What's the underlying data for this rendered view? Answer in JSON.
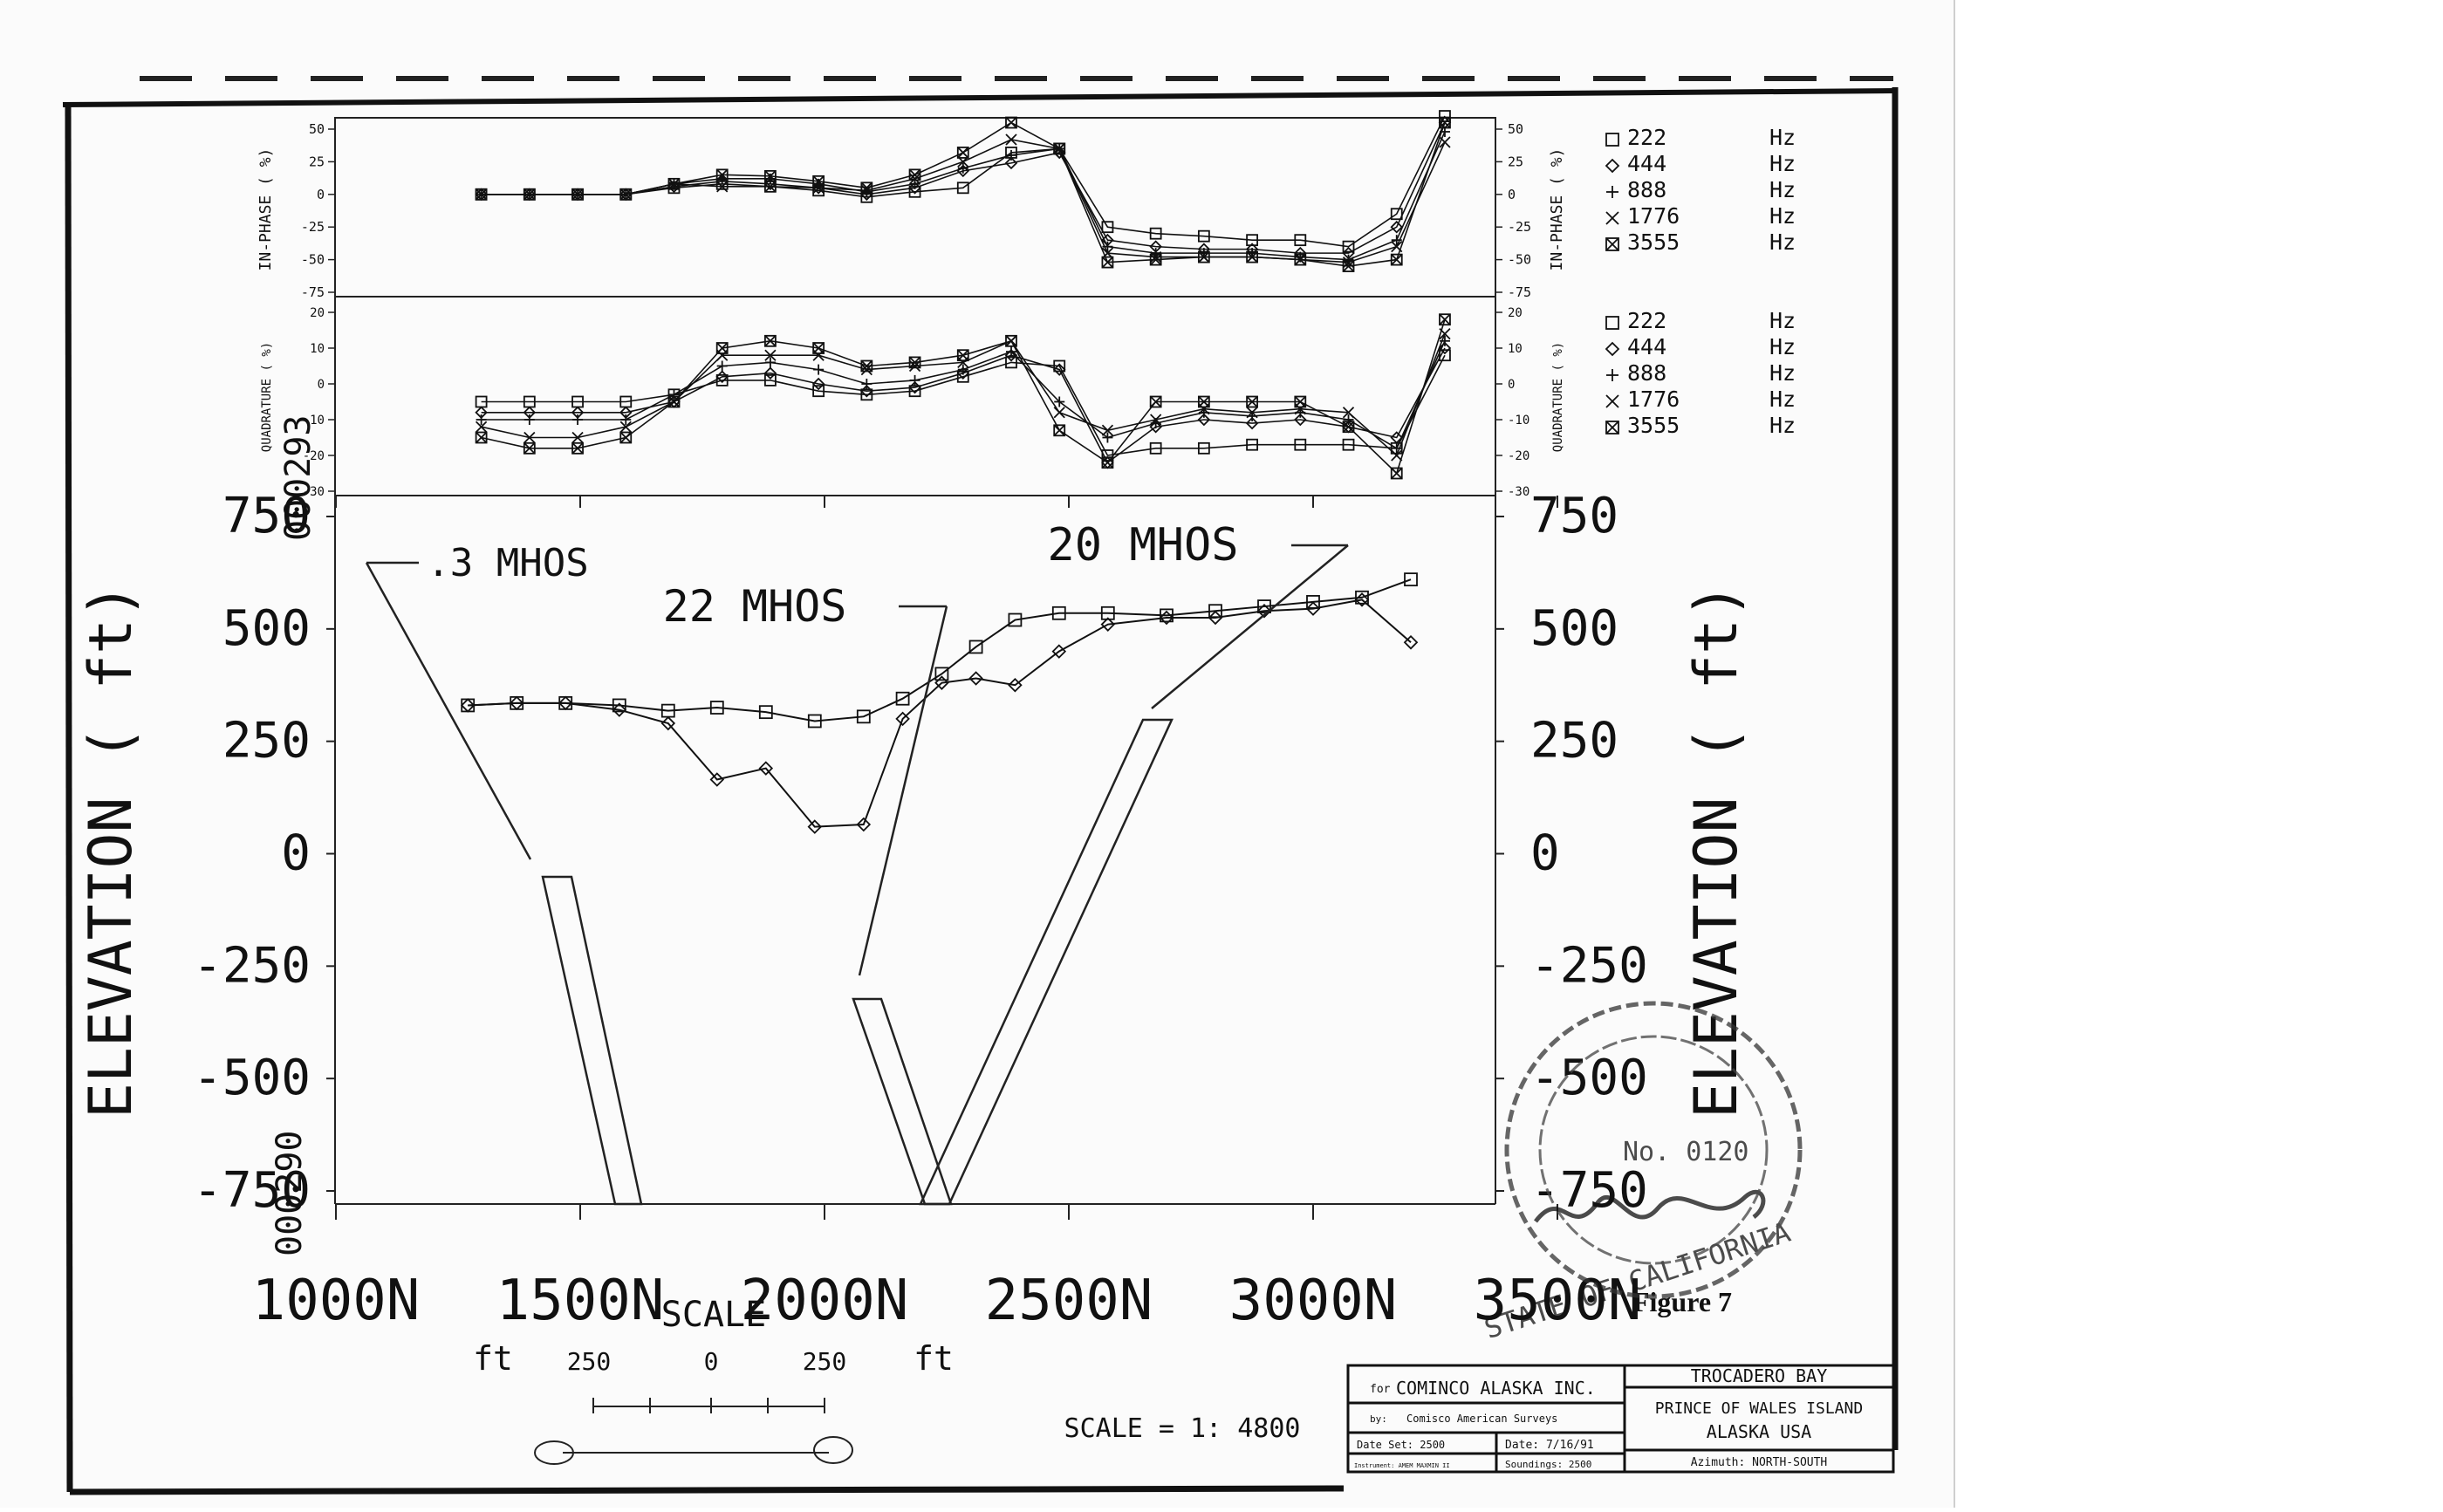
{
  "figure_label": "Figure 7",
  "chart_data": [
    {
      "type": "line",
      "panel": "in-phase",
      "ylabel_left": "IN-PHASE ( %)",
      "ylabel_right": "IN-PHASE ( %)",
      "ylim": [
        -75,
        50
      ],
      "yticks": [
        "50",
        "25",
        "0",
        "-25",
        "-50",
        "-75"
      ],
      "ytick_values": [
        50,
        25,
        0,
        -25,
        -50,
        -75
      ],
      "x": [
        1100,
        1300,
        1500,
        1700,
        1900,
        2100,
        2300,
        2500,
        2700,
        2900,
        3100,
        3300,
        3500,
        3700,
        3900,
        4100,
        4300,
        4500,
        4700,
        4900,
        5100
      ],
      "series": [
        {
          "name": "222",
          "unit": "Hz",
          "marker": "square",
          "values": [
            0,
            0,
            0,
            0,
            5,
            8,
            6,
            3,
            -2,
            2,
            5,
            32,
            35,
            -25,
            -30,
            -32,
            -35,
            -35,
            -40,
            -15,
            60
          ]
        },
        {
          "name": "444",
          "unit": "Hz",
          "marker": "diamond",
          "values": [
            0,
            0,
            0,
            0,
            6,
            10,
            8,
            5,
            0,
            5,
            18,
            24,
            32,
            -35,
            -40,
            -42,
            -42,
            -45,
            -45,
            -25,
            55
          ]
        },
        {
          "name": "888",
          "unit": "Hz",
          "marker": "plus",
          "values": [
            0,
            0,
            0,
            0,
            8,
            12,
            12,
            8,
            2,
            8,
            20,
            30,
            35,
            -40,
            -45,
            -45,
            -45,
            -48,
            -50,
            -35,
            48
          ]
        },
        {
          "name": "1776",
          "unit": "Hz",
          "marker": "cross",
          "values": [
            0,
            0,
            0,
            0,
            8,
            6,
            6,
            5,
            3,
            12,
            25,
            42,
            35,
            -45,
            -48,
            -48,
            -48,
            -50,
            -52,
            -40,
            40
          ]
        },
        {
          "name": "3555",
          "unit": "Hz",
          "marker": "boxx",
          "values": [
            0,
            0,
            0,
            0,
            8,
            15,
            14,
            10,
            5,
            15,
            32,
            55,
            35,
            -52,
            -50,
            -48,
            -48,
            -50,
            -55,
            -50,
            55
          ]
        }
      ],
      "legend": "right"
    },
    {
      "type": "line",
      "panel": "quadrature",
      "ylabel_left": "QUADRATURE ( %)",
      "ylabel_right": "QUADRATURE ( %)",
      "ylim": [
        -30,
        20
      ],
      "yticks": [
        "20",
        "10",
        "0",
        "-10",
        "-20",
        "-30"
      ],
      "ytick_values": [
        20,
        10,
        0,
        -10,
        -20,
        -30
      ],
      "x": [
        1100,
        1300,
        1500,
        1700,
        1900,
        2100,
        2300,
        2500,
        2700,
        2900,
        3100,
        3300,
        3500,
        3700,
        3900,
        4100,
        4300,
        4500,
        4700,
        4900,
        5100
      ],
      "series": [
        {
          "name": "222",
          "unit": "Hz",
          "marker": "square",
          "values": [
            -5,
            -5,
            -5,
            -5,
            -3,
            1,
            1,
            -2,
            -3,
            -2,
            2,
            6,
            5,
            -20,
            -18,
            -18,
            -17,
            -17,
            -17,
            -18,
            8
          ]
        },
        {
          "name": "444",
          "unit": "Hz",
          "marker": "diamond",
          "values": [
            -8,
            -8,
            -8,
            -8,
            -5,
            2,
            3,
            0,
            -2,
            -1,
            3,
            8,
            4,
            -22,
            -12,
            -10,
            -11,
            -10,
            -12,
            -15,
            10
          ]
        },
        {
          "name": "888",
          "unit": "Hz",
          "marker": "plus",
          "values": [
            -10,
            -10,
            -10,
            -10,
            -3,
            5,
            6,
            4,
            0,
            1,
            4,
            9,
            -5,
            -15,
            -11,
            -8,
            -9,
            -8,
            -10,
            -18,
            12
          ]
        },
        {
          "name": "1776",
          "unit": "Hz",
          "marker": "cross",
          "values": [
            -12,
            -15,
            -15,
            -12,
            -5,
            8,
            8,
            8,
            4,
            5,
            6,
            12,
            -8,
            -13,
            -10,
            -7,
            -8,
            -7,
            -8,
            -20,
            14
          ]
        },
        {
          "name": "3555",
          "unit": "Hz",
          "marker": "boxx",
          "values": [
            -15,
            -18,
            -18,
            -15,
            -5,
            10,
            12,
            10,
            5,
            6,
            8,
            12,
            -13,
            -22,
            -5,
            -5,
            -5,
            -5,
            -12,
            -25,
            18
          ]
        }
      ],
      "legend": "right"
    },
    {
      "type": "line",
      "panel": "elevation",
      "ylabel_left": "ELEVATION ( ft)",
      "ylabel_right": "ELEVATION ( ft)",
      "ylim": [
        -750,
        750
      ],
      "yticks": [
        "750",
        "500",
        "250",
        "0",
        "-250",
        "-500",
        "-750"
      ],
      "ytick_values": [
        750,
        500,
        250,
        0,
        -250,
        -500,
        -750
      ],
      "xlim": [
        1000,
        3500
      ],
      "xticks": [
        "1000N",
        "1500N",
        "2000N",
        "2500N",
        "3000N",
        "3500N"
      ],
      "xtick_values": [
        1000,
        1500,
        2000,
        2500,
        3000,
        3500
      ],
      "series": [
        {
          "marker": "square",
          "x": [
            1270,
            1370,
            1470,
            1580,
            1680,
            1780,
            1880,
            1980,
            2080,
            2160,
            2240,
            2310,
            2390,
            2480,
            2580,
            2700,
            2800,
            2900,
            3000,
            3100,
            3200
          ],
          "values": [
            330,
            335,
            335,
            330,
            318,
            325,
            315,
            295,
            305,
            345,
            400,
            460,
            520,
            535,
            535,
            530,
            540,
            550,
            560,
            570,
            610
          ]
        },
        {
          "marker": "diamond",
          "x": [
            1270,
            1370,
            1470,
            1580,
            1680,
            1780,
            1880,
            1980,
            2080,
            2160,
            2240,
            2310,
            2390,
            2480,
            2580,
            2700,
            2800,
            2900,
            3000,
            3100,
            3200
          ],
          "values": [
            330,
            335,
            335,
            320,
            290,
            165,
            190,
            60,
            65,
            300,
            380,
            390,
            375,
            450,
            510,
            525,
            525,
            540,
            545,
            565,
            470
          ]
        }
      ],
      "annotations": [
        ".3 MHOS",
        "22 MHOS",
        "20 MHOS"
      ]
    }
  ],
  "scale_bar": {
    "left_unit": "ft",
    "right_unit": "ft",
    "labels": [
      "250",
      "0",
      "250"
    ],
    "title": "SCALE"
  },
  "scale_ratio": "SCALE = 1: 4800",
  "title_block": {
    "for_label": "for",
    "client": "COMINCO ALASKA INC.",
    "by_label": "by:",
    "contractor": "Comisco American Surveys",
    "date_set": "Date Set: 2500",
    "date": "Date: 7/16/91",
    "instrument": "Instrument: AMEM MAXMIN II",
    "soundings": "Soundings: 2500",
    "location_title": "TROCADERO BAY",
    "location_1": "PRINCE OF WALES ISLAND",
    "location_2": "ALASKA USA",
    "azimuth": "Azimuth: NORTH-SOUTH"
  },
  "stamp": {
    "text_top": "STATE OF CALIFORNIA",
    "number": "No. 0120",
    "signature": "A Van Dusen"
  },
  "side_marks": [
    "000293",
    "000290"
  ]
}
